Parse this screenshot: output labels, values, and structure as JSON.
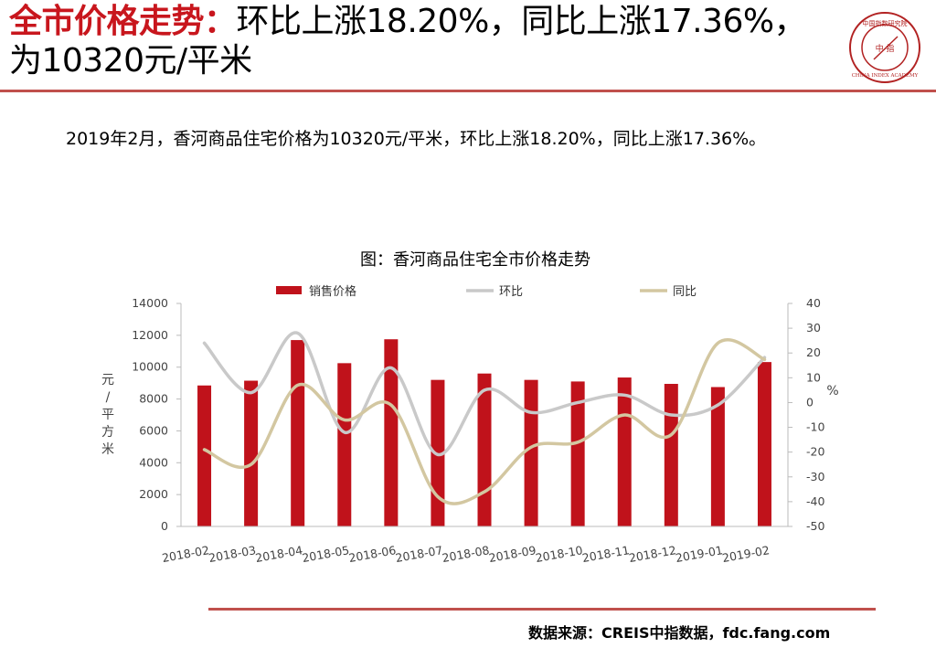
{
  "title": {
    "highlight": "全市价格走势：",
    "rest": "环比上涨18.20%，同比上涨17.36%，为10320元/平米"
  },
  "logo": {
    "top_text": "中国指数研究院",
    "center_text": "中 指",
    "bottom_text": "CHINA INDEX ACADEMY"
  },
  "summary": "2019年2月，香河商品住宅价格为10320元/平米，环比上涨18.20%，同比上涨17.36%。",
  "chart_title": "图：香河商品住宅全市价格走势",
  "source": "数据来源：CREIS中指数据，fdc.fang.com",
  "colors": {
    "title_red": "#c8161d",
    "bar": "#c0121b",
    "mom_line": "#c9c9c9",
    "yoy_line": "#d3c7a1",
    "rule": "#c0504d"
  },
  "chart_data": {
    "type": "bar",
    "title": "图：香河商品住宅全市价格走势",
    "categories": [
      "2018-02",
      "2018-03",
      "2018-04",
      "2018-05",
      "2018-06",
      "2018-07",
      "2018-08",
      "2018-09",
      "2018-10",
      "2018-11",
      "2018-12",
      "2019-01",
      "2019-02"
    ],
    "series": [
      {
        "name": "销售价格",
        "type": "bar",
        "axis": "left",
        "values": [
          8850,
          9150,
          11700,
          10250,
          11750,
          9200,
          9600,
          9200,
          9100,
          9350,
          8950,
          8750,
          10320
        ]
      },
      {
        "name": "环比",
        "type": "line",
        "axis": "right",
        "values": [
          24,
          4,
          28,
          -12,
          14,
          -21,
          5,
          -4,
          0,
          3,
          -5,
          -1,
          18.2
        ]
      },
      {
        "name": "同比",
        "type": "line",
        "axis": "right",
        "values": [
          -19,
          -25,
          7,
          -7,
          -1,
          -38,
          -36,
          -18,
          -16,
          -5,
          -13,
          24,
          17.36
        ]
      }
    ],
    "ylabel": "元/平方米",
    "ylim": [
      0,
      14000
    ],
    "y_ticks": [
      0,
      2000,
      4000,
      6000,
      8000,
      10000,
      12000,
      14000
    ],
    "y2label": "%",
    "y2lim": [
      -50,
      40
    ],
    "y2_ticks": [
      -50,
      -40,
      -30,
      -20,
      -10,
      0,
      10,
      20,
      30,
      40
    ],
    "legend_position": "top",
    "grid": false
  }
}
